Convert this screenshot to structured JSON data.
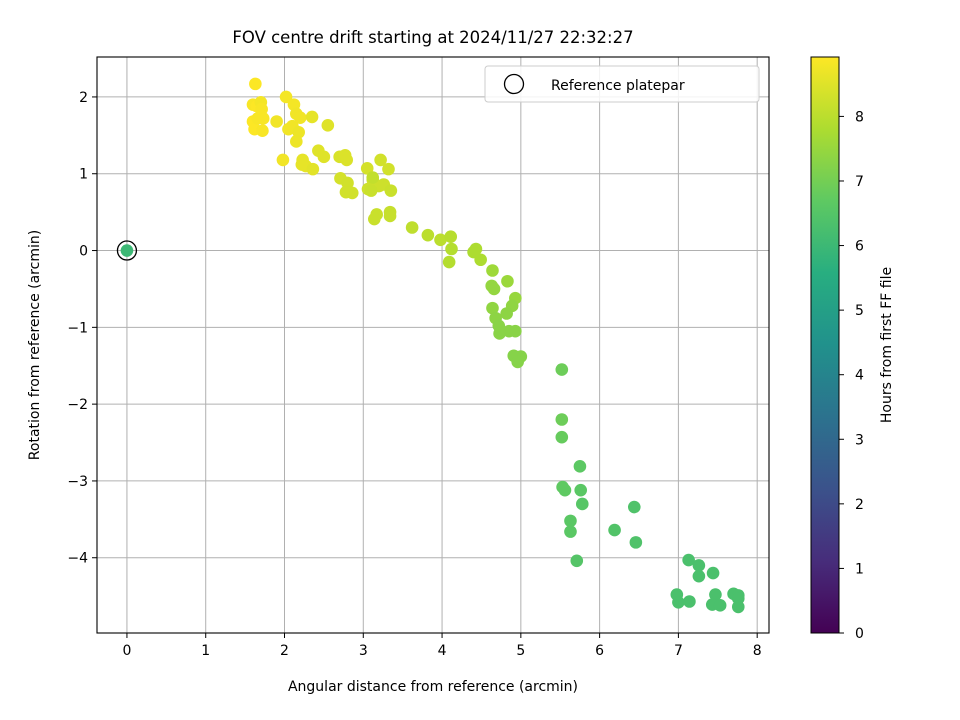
{
  "chart_data": {
    "type": "scatter",
    "title": "FOV centre drift starting at 2024/11/27 22:32:27",
    "xlabel": "Angular distance from reference (arcmin)",
    "ylabel": "Rotation from reference (arcmin)",
    "xlim": [
      -0.38,
      8.15
    ],
    "ylim": [
      -4.98,
      2.52
    ],
    "xticks": [
      0,
      1,
      2,
      3,
      4,
      5,
      6,
      7,
      8
    ],
    "yticks": [
      -4,
      -3,
      -2,
      -1,
      0,
      1,
      2
    ],
    "grid": true,
    "legend": {
      "position": "top-right",
      "entries": [
        "Reference platepar"
      ]
    },
    "colorbar": {
      "label": "Hours from first FF file",
      "range": [
        0,
        8.92
      ],
      "ticks": [
        0,
        1,
        2,
        3,
        4,
        5,
        6,
        7,
        8
      ],
      "colormap": "viridis"
    },
    "reference_point": {
      "x": 0,
      "y": 0,
      "hours": 6.0
    },
    "series": [
      {
        "marker": "circle",
        "x": [
          1.63,
          1.6,
          1.65,
          1.6,
          1.62,
          1.7,
          1.73,
          1.72,
          1.66,
          1.71,
          1.9,
          2.02,
          2.12,
          2.15,
          2.2,
          2.1,
          2.05,
          2.18,
          2.15,
          1.98,
          2.35,
          2.55,
          2.23,
          2.27,
          2.22,
          2.43,
          2.5,
          2.36,
          2.7,
          2.77,
          2.79,
          2.71,
          2.8,
          2.86,
          2.78,
          3.05,
          3.22,
          3.32,
          3.12,
          3.26,
          3.06,
          3.2,
          3.1,
          3.35,
          3.17,
          3.14,
          3.34,
          3.34,
          3.12,
          3.62,
          3.82,
          3.98,
          4.11,
          4.12,
          4.09,
          4.43,
          4.49,
          4.4,
          4.64,
          4.83,
          4.93,
          4.63,
          4.66,
          4.89,
          4.64,
          4.82,
          4.68,
          4.72,
          4.85,
          4.73,
          4.93,
          4.91,
          5.0,
          4.96,
          5.52,
          5.52,
          5.52,
          5.53,
          5.56,
          5.63,
          5.63,
          5.76,
          5.75,
          5.78,
          5.71,
          6.19,
          6.44,
          6.46,
          7.13,
          7.26,
          7.26,
          7.44,
          6.98,
          7.0,
          7.14,
          7.47,
          7.7,
          7.76,
          7.76,
          7.43,
          7.53,
          7.76
        ],
        "y": [
          2.17,
          1.9,
          1.88,
          1.68,
          1.58,
          1.93,
          1.72,
          1.56,
          1.72,
          1.84,
          1.68,
          2.0,
          1.9,
          1.78,
          1.73,
          1.62,
          1.58,
          1.54,
          1.42,
          1.18,
          1.74,
          1.63,
          1.18,
          1.1,
          1.12,
          1.3,
          1.22,
          1.06,
          1.22,
          1.24,
          1.18,
          0.94,
          0.88,
          0.75,
          0.76,
          1.07,
          1.18,
          1.06,
          0.92,
          0.86,
          0.8,
          0.84,
          0.78,
          0.78,
          0.47,
          0.41,
          0.5,
          0.45,
          0.95,
          0.3,
          0.2,
          0.14,
          0.18,
          0.02,
          -0.15,
          0.02,
          -0.12,
          -0.02,
          -0.26,
          -0.4,
          -0.62,
          -0.46,
          -0.5,
          -0.72,
          -0.75,
          -0.82,
          -0.88,
          -0.98,
          -1.05,
          -1.08,
          -1.05,
          -1.37,
          -1.38,
          -1.45,
          -1.55,
          -2.2,
          -2.43,
          -3.08,
          -3.12,
          -3.52,
          -3.66,
          -3.12,
          -2.81,
          -3.3,
          -4.04,
          -3.64,
          -3.34,
          -3.8,
          -4.03,
          -4.1,
          -4.24,
          -4.2,
          -4.48,
          -4.58,
          -4.57,
          -4.48,
          -4.47,
          -4.49,
          -4.53,
          -4.61,
          -4.62,
          -4.64
        ],
        "hours": [
          8.9,
          8.85,
          8.9,
          8.9,
          8.9,
          8.8,
          8.85,
          8.85,
          8.85,
          8.85,
          8.75,
          8.8,
          8.8,
          8.75,
          8.75,
          8.75,
          8.75,
          8.7,
          8.7,
          8.75,
          8.6,
          8.5,
          8.6,
          8.6,
          8.6,
          8.5,
          8.5,
          8.55,
          8.4,
          8.45,
          8.45,
          8.35,
          8.3,
          8.3,
          8.3,
          8.35,
          8.3,
          8.3,
          8.3,
          8.25,
          8.25,
          8.25,
          8.2,
          8.2,
          8.2,
          8.2,
          8.15,
          8.15,
          8.1,
          8.05,
          8.0,
          8.0,
          7.95,
          7.9,
          7.9,
          7.8,
          7.8,
          7.8,
          7.6,
          7.55,
          7.5,
          7.45,
          7.45,
          7.4,
          7.4,
          7.35,
          7.35,
          7.3,
          7.3,
          7.3,
          7.3,
          7.25,
          7.25,
          7.25,
          6.9,
          6.9,
          6.8,
          6.7,
          6.7,
          6.6,
          6.6,
          6.6,
          6.65,
          6.55,
          6.5,
          6.45,
          6.4,
          6.4,
          6.3,
          6.3,
          6.3,
          6.3,
          6.3,
          6.3,
          6.3,
          6.3,
          6.3,
          6.3,
          6.3,
          6.3,
          6.3,
          6.3
        ]
      }
    ]
  }
}
